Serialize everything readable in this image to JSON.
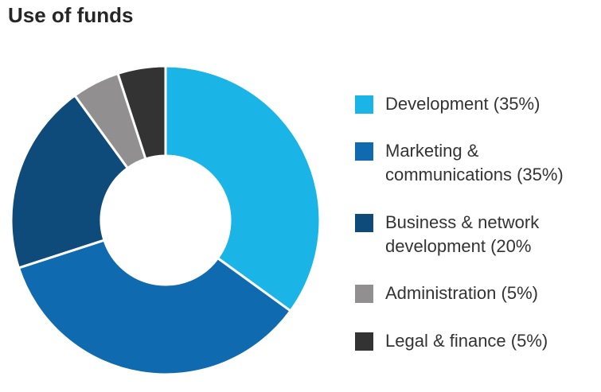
{
  "title": "Use of funds",
  "chart_data": {
    "type": "pie",
    "donut": true,
    "title": "Use of funds",
    "legend_position": "right",
    "slices": [
      {
        "label": "Development (35%)",
        "value": 35,
        "color": "#1bb4e6"
      },
      {
        "label": "Marketing &\n communications (35%)",
        "value": 35,
        "color": "#0f6aaf"
      },
      {
        "label": "Business & network\ndevelopment (20%",
        "value": 20,
        "color": "#0e4a7a"
      },
      {
        "label": "Administration (5%)",
        "value": 5,
        "color": "#918f90"
      },
      {
        "label": "Legal & finance (5%)",
        "value": 5,
        "color": "#333333"
      }
    ]
  }
}
